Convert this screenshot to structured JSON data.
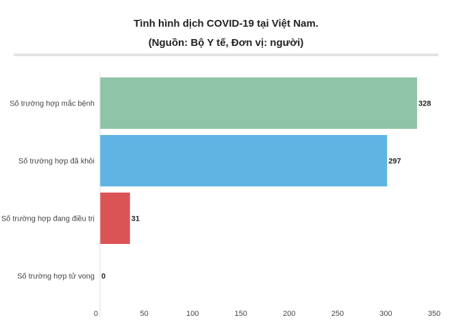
{
  "chart_data": {
    "type": "bar",
    "orientation": "horizontal",
    "title": "Tình hình dịch COVID-19 tại Việt Nam.",
    "subtitle": "(Nguồn: Bộ Y tế, Đơn vị: người)",
    "categories": [
      "Số trường hợp mắc bệnh",
      "Số trường hợp đã khỏi",
      "Số trường hợp đang điều trị",
      "Số trường hợp tử vong"
    ],
    "values": [
      328,
      297,
      31,
      0
    ],
    "colors": [
      "#8fc4a8",
      "#5fb4e4",
      "#dc5356",
      "#999999"
    ],
    "xlim": [
      0,
      350
    ],
    "xticks": [
      0,
      50,
      100,
      150,
      200,
      250,
      300,
      350
    ],
    "xlabel": "",
    "ylabel": "",
    "grid": false,
    "data_labels": true
  }
}
